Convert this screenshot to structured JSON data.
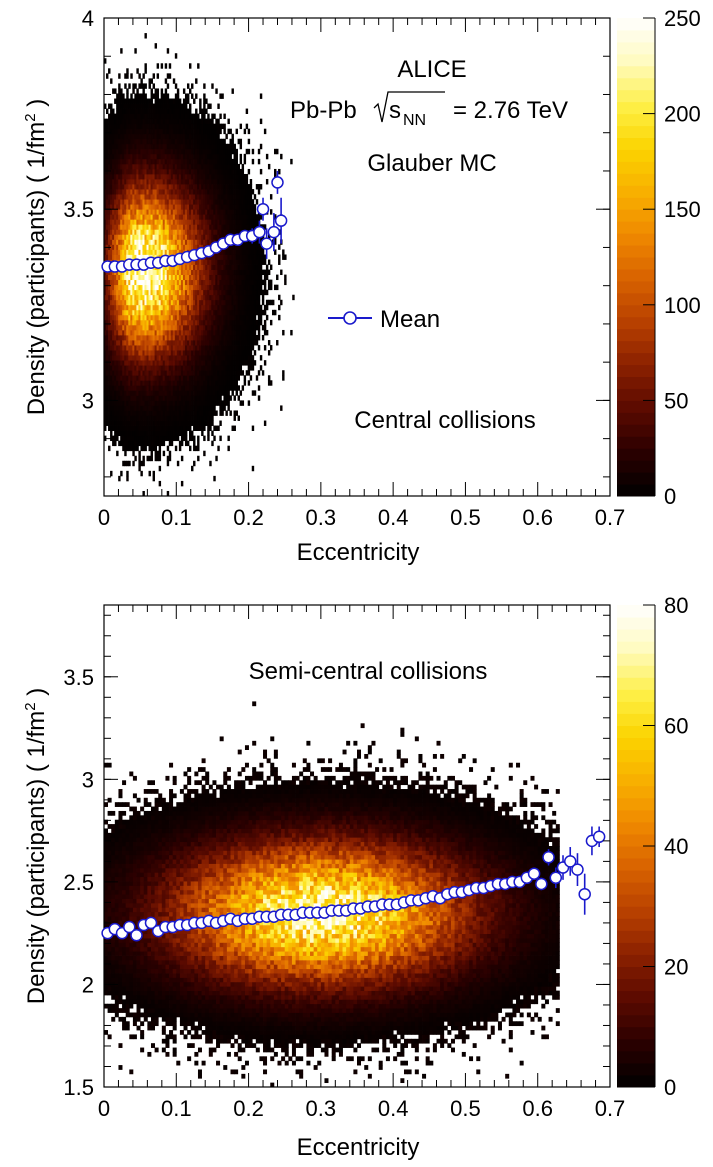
{
  "chart_data": [
    {
      "type": "heatmap",
      "panel": "top",
      "title_lines": [
        "ALICE",
        "Glauber MC"
      ],
      "system_label": {
        "prefix": "Pb-Pb",
        "sqrt": "s",
        "sub": "NN",
        "suffix": "= 2.76 TeV"
      },
      "annotation": "Central collisions",
      "legend": {
        "entries": [
          {
            "label": "Mean"
          }
        ]
      },
      "xlabel": "Eccentricity",
      "ylabel": "Density (participants) ( 1/fm",
      "ylabel_sup": "2",
      "ylabel_tail": " )",
      "xlim": [
        0,
        0.7
      ],
      "ylim": [
        2.75,
        4.0
      ],
      "xticks": [
        "0",
        "0.1",
        "0.2",
        "0.3",
        "0.4",
        "0.5",
        "0.6",
        "0.7"
      ],
      "xtick_values": [
        0,
        0.1,
        0.2,
        0.3,
        0.4,
        0.5,
        0.6,
        0.7
      ],
      "yticks": [
        "3",
        "3.5",
        "4"
      ],
      "ytick_values": [
        3.0,
        3.5,
        4.0
      ],
      "colorbar": {
        "min": 0,
        "max": 250,
        "ticks": [
          "0",
          "50",
          "100",
          "150",
          "200",
          "250"
        ],
        "tick_values": [
          0,
          50,
          100,
          150,
          200,
          250
        ]
      },
      "distribution": {
        "peak_x": 0.055,
        "peak_y": 3.34,
        "sigma_x": 0.05,
        "sigma_y": 0.14,
        "x_max": 0.26,
        "peak_count": 240
      },
      "mean": {
        "x": [
          0.005,
          0.015,
          0.025,
          0.035,
          0.045,
          0.055,
          0.065,
          0.075,
          0.085,
          0.095,
          0.105,
          0.115,
          0.125,
          0.135,
          0.145,
          0.155,
          0.165,
          0.175,
          0.185,
          0.195,
          0.205,
          0.215,
          0.22,
          0.225,
          0.235,
          0.24,
          0.245
        ],
        "y": [
          3.35,
          3.35,
          3.35,
          3.355,
          3.355,
          3.355,
          3.36,
          3.36,
          3.365,
          3.365,
          3.37,
          3.375,
          3.38,
          3.385,
          3.39,
          3.4,
          3.41,
          3.42,
          3.42,
          3.43,
          3.43,
          3.44,
          3.5,
          3.41,
          3.44,
          3.57,
          3.47
        ],
        "err": [
          0,
          0,
          0,
          0,
          0,
          0,
          0,
          0,
          0,
          0,
          0,
          0,
          0,
          0,
          0,
          0,
          0,
          0.01,
          0.01,
          0.015,
          0.02,
          0.03,
          0.03,
          0.04,
          0.05,
          0.03,
          0.06
        ]
      },
      "colorscale": [
        "#000000",
        "#2a0000",
        "#5a0a00",
        "#8a2000",
        "#b84000",
        "#d86200",
        "#ef8800",
        "#f8b000",
        "#fbd400",
        "#fef048",
        "#fffbc0",
        "#ffffff"
      ]
    },
    {
      "type": "heatmap",
      "panel": "bottom",
      "annotation": "Semi-central collisions",
      "xlabel": "Eccentricity",
      "ylabel": "Density (participants) ( 1/fm",
      "ylabel_sup": "2",
      "ylabel_tail": " )",
      "xlim": [
        0,
        0.7
      ],
      "ylim": [
        1.5,
        3.85
      ],
      "xticks": [
        "0",
        "0.1",
        "0.2",
        "0.3",
        "0.4",
        "0.5",
        "0.6",
        "0.7"
      ],
      "xtick_values": [
        0,
        0.1,
        0.2,
        0.3,
        0.4,
        0.5,
        0.6,
        0.7
      ],
      "yticks": [
        "1.5",
        "2",
        "2.5",
        "3",
        "3.5"
      ],
      "ytick_values": [
        1.5,
        2.0,
        2.5,
        3.0,
        3.5
      ],
      "colorbar": {
        "min": 0,
        "max": 80,
        "ticks": [
          "0",
          "20",
          "40",
          "60",
          "80"
        ],
        "tick_values": [
          0,
          20,
          40,
          60,
          80
        ]
      },
      "distribution": {
        "peak_x": 0.3,
        "peak_y": 2.35,
        "sigma_x": 0.13,
        "sigma_y": 0.22,
        "x_max": 0.62,
        "peak_count": 72
      },
      "mean": {
        "x": [
          0.005,
          0.015,
          0.025,
          0.035,
          0.045,
          0.055,
          0.065,
          0.075,
          0.085,
          0.095,
          0.105,
          0.115,
          0.125,
          0.135,
          0.145,
          0.155,
          0.165,
          0.175,
          0.185,
          0.195,
          0.205,
          0.215,
          0.225,
          0.235,
          0.245,
          0.255,
          0.265,
          0.275,
          0.285,
          0.295,
          0.305,
          0.315,
          0.325,
          0.335,
          0.345,
          0.355,
          0.365,
          0.375,
          0.385,
          0.395,
          0.405,
          0.415,
          0.425,
          0.435,
          0.445,
          0.455,
          0.465,
          0.475,
          0.485,
          0.495,
          0.505,
          0.515,
          0.525,
          0.535,
          0.545,
          0.555,
          0.565,
          0.575,
          0.585,
          0.595,
          0.605,
          0.615,
          0.625,
          0.635,
          0.645,
          0.655,
          0.665,
          0.675,
          0.685
        ],
        "y": [
          2.25,
          2.27,
          2.25,
          2.28,
          2.24,
          2.29,
          2.3,
          2.26,
          2.28,
          2.28,
          2.29,
          2.29,
          2.3,
          2.3,
          2.31,
          2.3,
          2.31,
          2.32,
          2.31,
          2.32,
          2.32,
          2.33,
          2.33,
          2.33,
          2.34,
          2.34,
          2.34,
          2.35,
          2.35,
          2.35,
          2.35,
          2.36,
          2.36,
          2.36,
          2.37,
          2.37,
          2.38,
          2.38,
          2.39,
          2.39,
          2.39,
          2.4,
          2.41,
          2.41,
          2.42,
          2.43,
          2.42,
          2.44,
          2.45,
          2.45,
          2.46,
          2.47,
          2.47,
          2.48,
          2.49,
          2.49,
          2.5,
          2.5,
          2.52,
          2.54,
          2.49,
          2.62,
          2.52,
          2.57,
          2.6,
          2.56,
          2.44,
          2.7,
          2.72
        ],
        "err": [
          0,
          0,
          0,
          0,
          0,
          0,
          0,
          0,
          0,
          0,
          0,
          0,
          0,
          0,
          0,
          0,
          0,
          0,
          0,
          0,
          0,
          0,
          0,
          0,
          0,
          0,
          0,
          0,
          0,
          0,
          0,
          0,
          0,
          0,
          0,
          0,
          0,
          0,
          0,
          0,
          0,
          0,
          0,
          0,
          0,
          0,
          0,
          0,
          0,
          0,
          0,
          0,
          0,
          0,
          0,
          0,
          0,
          0,
          0.01,
          0.02,
          0.03,
          0.04,
          0.05,
          0.06,
          0.07,
          0.08,
          0.1,
          0.07,
          0.05
        ]
      },
      "colorscale": [
        "#000000",
        "#2a0000",
        "#5a0a00",
        "#8a2000",
        "#b84000",
        "#d86200",
        "#ef8800",
        "#f8b000",
        "#fbd400",
        "#fef048",
        "#fffbc0",
        "#ffffff"
      ]
    }
  ]
}
